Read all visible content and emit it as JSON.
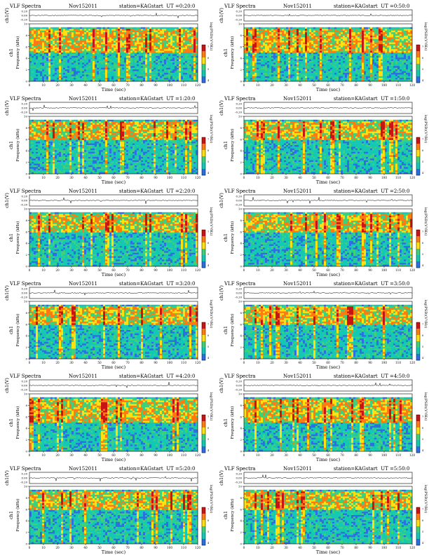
{
  "header": {
    "title": "VLF Spectra",
    "date": "Nov152011",
    "station": "station=KAG",
    "start_label": "start  UT"
  },
  "axis_labels": {
    "amplitude_ylabel": "ch1(V)",
    "amplitude_ticks": [
      "0.20",
      "0.00",
      "-0.20"
    ],
    "spec_ylabel_ch": "ch1",
    "spec_ylabel": "Frequency (kHz)",
    "spec_yticks": [
      "10",
      "8",
      "6",
      "4",
      "2",
      "0"
    ],
    "xlabel": "Time (sec)",
    "xticks": [
      "0",
      "10",
      "20",
      "30",
      "40",
      "50",
      "60",
      "70",
      "80",
      "90",
      "100",
      "110",
      "120"
    ],
    "colorbar_label": "log(PSD)(V²/Hz)",
    "colorbar_ticks": [
      "7",
      "6",
      "5",
      "4"
    ]
  },
  "colors": {
    "low": "#2b6fe0",
    "mid_low": "#14c8b4",
    "mid": "#3fd07a",
    "mid_high": "#ffe010",
    "high": "#ff7a10",
    "peak": "#c81414",
    "no_data": "#ffffff"
  },
  "chart_data": [
    {
      "type": "heatmap",
      "start_ut": "=0:20:0",
      "xlim": [
        0,
        120
      ],
      "ylim": [
        0,
        10
      ],
      "y_unit": "kHz",
      "x_unit": "sec",
      "active_band_khz": [
        5,
        9
      ]
    },
    {
      "type": "heatmap",
      "start_ut": "=0:50:0",
      "xlim": [
        0,
        120
      ],
      "ylim": [
        0,
        10
      ],
      "y_unit": "kHz",
      "x_unit": "sec",
      "active_band_khz": [
        5,
        9
      ]
    },
    {
      "type": "heatmap",
      "start_ut": "=1:20:0",
      "xlim": [
        0,
        120
      ],
      "ylim": [
        0,
        10
      ],
      "y_unit": "kHz",
      "x_unit": "sec",
      "active_band_khz": [
        6,
        9
      ]
    },
    {
      "type": "heatmap",
      "start_ut": "=1:50:0",
      "xlim": [
        0,
        120
      ],
      "ylim": [
        0,
        10
      ],
      "y_unit": "kHz",
      "x_unit": "sec",
      "active_band_khz": [
        6,
        9
      ]
    },
    {
      "type": "heatmap",
      "start_ut": "=2:20:0",
      "xlim": [
        0,
        120
      ],
      "ylim": [
        0,
        10
      ],
      "y_unit": "kHz",
      "x_unit": "sec",
      "active_band_khz": [
        6,
        9
      ]
    },
    {
      "type": "heatmap",
      "start_ut": "=2:50:0",
      "xlim": [
        0,
        120
      ],
      "ylim": [
        0,
        10
      ],
      "y_unit": "kHz",
      "x_unit": "sec",
      "active_band_khz": [
        6,
        9
      ]
    },
    {
      "type": "heatmap",
      "start_ut": "=3:20:0",
      "xlim": [
        0,
        120
      ],
      "ylim": [
        0,
        10
      ],
      "y_unit": "kHz",
      "x_unit": "sec",
      "active_band_khz": [
        6,
        9
      ]
    },
    {
      "type": "heatmap",
      "start_ut": "=3:50:0",
      "xlim": [
        0,
        120
      ],
      "ylim": [
        0,
        10
      ],
      "y_unit": "kHz",
      "x_unit": "sec",
      "active_band_khz": [
        6,
        9
      ]
    },
    {
      "type": "heatmap",
      "start_ut": "=4:20:0",
      "xlim": [
        0,
        120
      ],
      "ylim": [
        0,
        10
      ],
      "y_unit": "kHz",
      "x_unit": "sec",
      "active_band_khz": [
        5,
        9
      ]
    },
    {
      "type": "heatmap",
      "start_ut": "=4:50:0",
      "xlim": [
        0,
        120
      ],
      "ylim": [
        0,
        10
      ],
      "y_unit": "kHz",
      "x_unit": "sec",
      "active_band_khz": [
        5,
        9
      ]
    },
    {
      "type": "heatmap",
      "start_ut": "=5:20:0",
      "xlim": [
        0,
        120
      ],
      "ylim": [
        0,
        10
      ],
      "y_unit": "kHz",
      "x_unit": "sec",
      "active_band_khz": [
        6,
        9
      ]
    },
    {
      "type": "heatmap",
      "start_ut": "=5:50:0",
      "xlim": [
        0,
        120
      ],
      "ylim": [
        0,
        10
      ],
      "y_unit": "kHz",
      "x_unit": "sec",
      "active_band_khz": [
        6,
        9
      ]
    }
  ]
}
